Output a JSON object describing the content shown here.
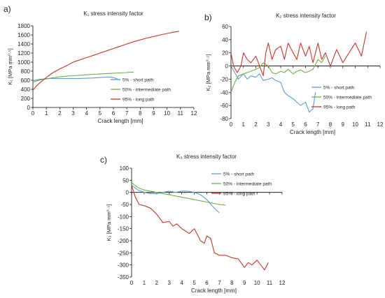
{
  "chart_data": [
    {
      "id": "a",
      "panel_label": "a)",
      "type": "line",
      "title": "K₁ stress intensity factor",
      "xlabel": "Crack length [mm]",
      "ylabel": "K₁ [MPa mm⁰·⁵]",
      "xlim": [
        0,
        12
      ],
      "ylim": [
        0,
        1800
      ],
      "xticks": [
        0,
        1,
        2,
        3,
        4,
        5,
        6,
        7,
        8,
        9,
        10,
        11,
        12
      ],
      "yticks": [
        0,
        200,
        400,
        600,
        800,
        1000,
        1200,
        1400,
        1600,
        1800
      ],
      "grid": false,
      "legend_position": "bottom-right",
      "series": [
        {
          "name": "5% - short path",
          "color": "#5b9bd5",
          "x": [
            0,
            0.5,
            1,
            1.5,
            2,
            2.5,
            3,
            3.5,
            4,
            4.5,
            5,
            5.5,
            5.8,
            6,
            6.2,
            6.5
          ],
          "y": [
            590,
            620,
            635,
            640,
            640,
            640,
            640,
            640,
            645,
            650,
            660,
            670,
            670,
            660,
            640,
            600
          ]
        },
        {
          "name": "50% - intermediate path",
          "color": "#70ad47",
          "x": [
            0,
            0.5,
            1,
            1.5,
            2,
            2.5,
            3,
            3.5,
            4,
            4.5,
            5,
            5.5,
            6,
            6.5,
            7,
            7.3,
            7.5
          ],
          "y": [
            560,
            605,
            630,
            655,
            675,
            690,
            700,
            710,
            720,
            730,
            740,
            748,
            755,
            762,
            770,
            780,
            775
          ]
        },
        {
          "name": "95% - long path",
          "color": "#c0392b",
          "x": [
            0,
            0.25,
            0.5,
            1,
            1.5,
            2,
            2.5,
            3,
            3.5,
            4,
            4.5,
            5,
            5.5,
            6,
            6.5,
            7,
            7.5,
            8,
            8.5,
            9,
            9.5,
            10,
            10.5,
            10.9
          ],
          "y": [
            380,
            470,
            540,
            660,
            770,
            850,
            920,
            1000,
            1050,
            1100,
            1150,
            1200,
            1250,
            1300,
            1350,
            1400,
            1450,
            1490,
            1530,
            1565,
            1600,
            1630,
            1660,
            1680
          ]
        }
      ]
    },
    {
      "id": "b",
      "panel_label": "b)",
      "type": "line",
      "title": "K₂ stress intensity factor",
      "xlabel": "Crack length [mm]",
      "ylabel": "K₂ [MPa mm⁰·⁵]",
      "xlim": [
        0,
        12
      ],
      "ylim": [
        -80,
        60
      ],
      "xticks": [
        0,
        1,
        2,
        3,
        4,
        5,
        6,
        7,
        8,
        9,
        10,
        11,
        12
      ],
      "yticks": [
        -80,
        -60,
        -40,
        -20,
        0,
        20,
        40,
        60
      ],
      "grid": false,
      "legend_position": "bottom-right",
      "series": [
        {
          "name": "5% - short path",
          "color": "#5b9bd5",
          "x": [
            0,
            0.3,
            0.6,
            1,
            1.3,
            1.6,
            2,
            2.3,
            2.6,
            3,
            3.3,
            3.6,
            4,
            4.3,
            4.6,
            5,
            5.3,
            5.6,
            6,
            6.3,
            6.6,
            6.8
          ],
          "y": [
            0,
            -10,
            -20,
            -12,
            -20,
            -15,
            -17,
            -12,
            -22,
            -20,
            -18,
            -22,
            -25,
            -40,
            -45,
            -50,
            -55,
            -60,
            -55,
            -70,
            -65,
            -40
          ]
        },
        {
          "name": "50% - intermediate path",
          "color": "#70ad47",
          "x": [
            0,
            0.3,
            0.6,
            1,
            1.3,
            1.6,
            2,
            2.3,
            2.6,
            3,
            3.3,
            3.6,
            4,
            4.3,
            4.6,
            5,
            5.3,
            5.6,
            6,
            6.3,
            6.6,
            7,
            7.3,
            7.6
          ],
          "y": [
            -40,
            -25,
            -15,
            -12,
            -10,
            -8,
            -5,
            -2,
            5,
            0,
            -10,
            -12,
            -8,
            -10,
            -5,
            -12,
            -8,
            -6,
            -10,
            -8,
            -5,
            10,
            5,
            15
          ]
        },
        {
          "name": "95% - long path",
          "color": "#c0392b",
          "x": [
            0,
            0.2,
            0.5,
            0.8,
            1,
            1.3,
            1.6,
            2,
            2.3,
            2.6,
            2.8,
            3,
            3.3,
            3.6,
            4,
            4.3,
            4.6,
            5,
            5.3,
            5.6,
            6,
            6.3,
            6.6,
            7,
            7.3,
            7.6,
            8,
            8.5,
            9,
            9.5,
            10,
            10.5,
            10.9
          ],
          "y": [
            20,
            0,
            -10,
            0,
            20,
            10,
            5,
            15,
            0,
            -15,
            20,
            35,
            10,
            25,
            30,
            10,
            35,
            20,
            10,
            35,
            15,
            30,
            5,
            35,
            10,
            20,
            0,
            25,
            5,
            20,
            35,
            15,
            52
          ]
        }
      ]
    },
    {
      "id": "c",
      "panel_label": "c)",
      "type": "line",
      "title": "K₃ stress intensity factor",
      "xlabel": "Crack length [mm]",
      "ylabel": "K₃ [MPa mm⁰·⁵]",
      "xlim": [
        0,
        12
      ],
      "ylim": [
        -350,
        100
      ],
      "xticks": [
        0,
        1,
        2,
        3,
        4,
        5,
        6,
        7,
        8,
        9,
        10,
        11,
        12
      ],
      "yticks": [
        -350,
        -300,
        -250,
        -200,
        -150,
        -100,
        -50,
        0,
        50,
        100
      ],
      "grid": false,
      "legend_position": "top-right",
      "series": [
        {
          "name": "5% - short path",
          "color": "#5b9bd5",
          "x": [
            0,
            0.5,
            1,
            1.5,
            2,
            2.5,
            3,
            3.5,
            4,
            4.5,
            5,
            5.5,
            6,
            6.5,
            7
          ],
          "y": [
            30,
            10,
            0,
            -5,
            -5,
            0,
            5,
            0,
            5,
            5,
            0,
            -10,
            -30,
            -60,
            -85
          ]
        },
        {
          "name": "50% - intermediate path",
          "color": "#70ad47",
          "x": [
            0,
            0.5,
            1,
            1.5,
            2,
            2.5,
            3,
            3.5,
            4,
            4.5,
            5,
            5.5,
            6,
            6.5,
            7,
            7.5
          ],
          "y": [
            40,
            20,
            10,
            5,
            0,
            -5,
            -10,
            -15,
            -20,
            -25,
            -30,
            -35,
            -40,
            -45,
            -50,
            -53
          ]
        },
        {
          "name": "95% - long path",
          "color": "#c0392b",
          "x": [
            0,
            0.3,
            0.6,
            1,
            1.5,
            2,
            2.5,
            3,
            3.3,
            3.6,
            4,
            4.3,
            4.6,
            5,
            5.5,
            5.8,
            6,
            6.3,
            6.6,
            7,
            7.5,
            8,
            8.5,
            9,
            9.3,
            9.6,
            10,
            10.3,
            10.6,
            10.9
          ],
          "y": [
            30,
            -20,
            -50,
            -55,
            -65,
            -90,
            -125,
            -120,
            -140,
            -130,
            -150,
            -160,
            -170,
            -150,
            -200,
            -210,
            -180,
            -190,
            -250,
            -260,
            -260,
            -270,
            -275,
            -310,
            -290,
            -300,
            -280,
            -300,
            -320,
            -290
          ]
        }
      ]
    }
  ]
}
